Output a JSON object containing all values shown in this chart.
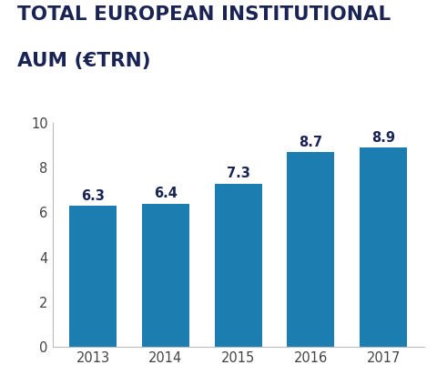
{
  "title_line1": "TOTAL EUROPEAN INSTITUTIONAL",
  "title_line2": "AUM (€TRN)",
  "categories": [
    "2013",
    "2014",
    "2015",
    "2016",
    "2017"
  ],
  "values": [
    6.3,
    6.4,
    7.3,
    8.7,
    8.9
  ],
  "bar_color": "#1c7db0",
  "bar_width": 0.65,
  "ylim": [
    0,
    10
  ],
  "yticks": [
    0,
    2,
    4,
    6,
    8,
    10
  ],
  "title_color": "#1a2454",
  "title_fontsize": 15.5,
  "tick_fontsize": 10.5,
  "value_label_fontsize": 10.5,
  "value_label_color": "#1a2454",
  "background_color": "#ffffff"
}
